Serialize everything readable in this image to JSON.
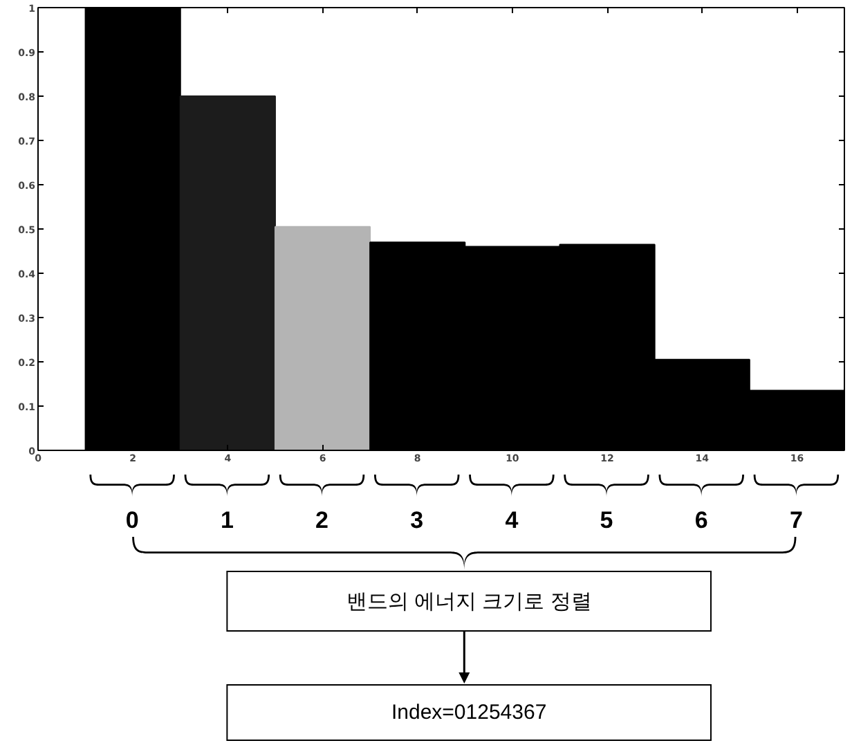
{
  "chart_data": {
    "type": "bar",
    "x": [
      2,
      4,
      6,
      8,
      10,
      12,
      14,
      16
    ],
    "values": [
      1.0,
      0.8,
      0.505,
      0.47,
      0.46,
      0.465,
      0.205,
      0.135
    ],
    "colors": [
      "#000000",
      "#1c1c1c",
      "#b4b4b4",
      "#000000",
      "#000000",
      "#000000",
      "#000000",
      "#000000"
    ],
    "xlim": [
      0,
      17
    ],
    "ylim": [
      0,
      1
    ],
    "xticks": [
      0,
      2,
      4,
      6,
      8,
      10,
      12,
      14,
      16
    ],
    "yticks": [
      0,
      0.1,
      0.2,
      0.3,
      0.4,
      0.5,
      0.6,
      0.7,
      0.8,
      0.9,
      1
    ],
    "annotations": [
      "0",
      "1",
      "2",
      "3",
      "4",
      "5",
      "6",
      "7",
      "밴드의 에너지 크기로 정렬",
      "Index=01254367"
    ]
  }
}
